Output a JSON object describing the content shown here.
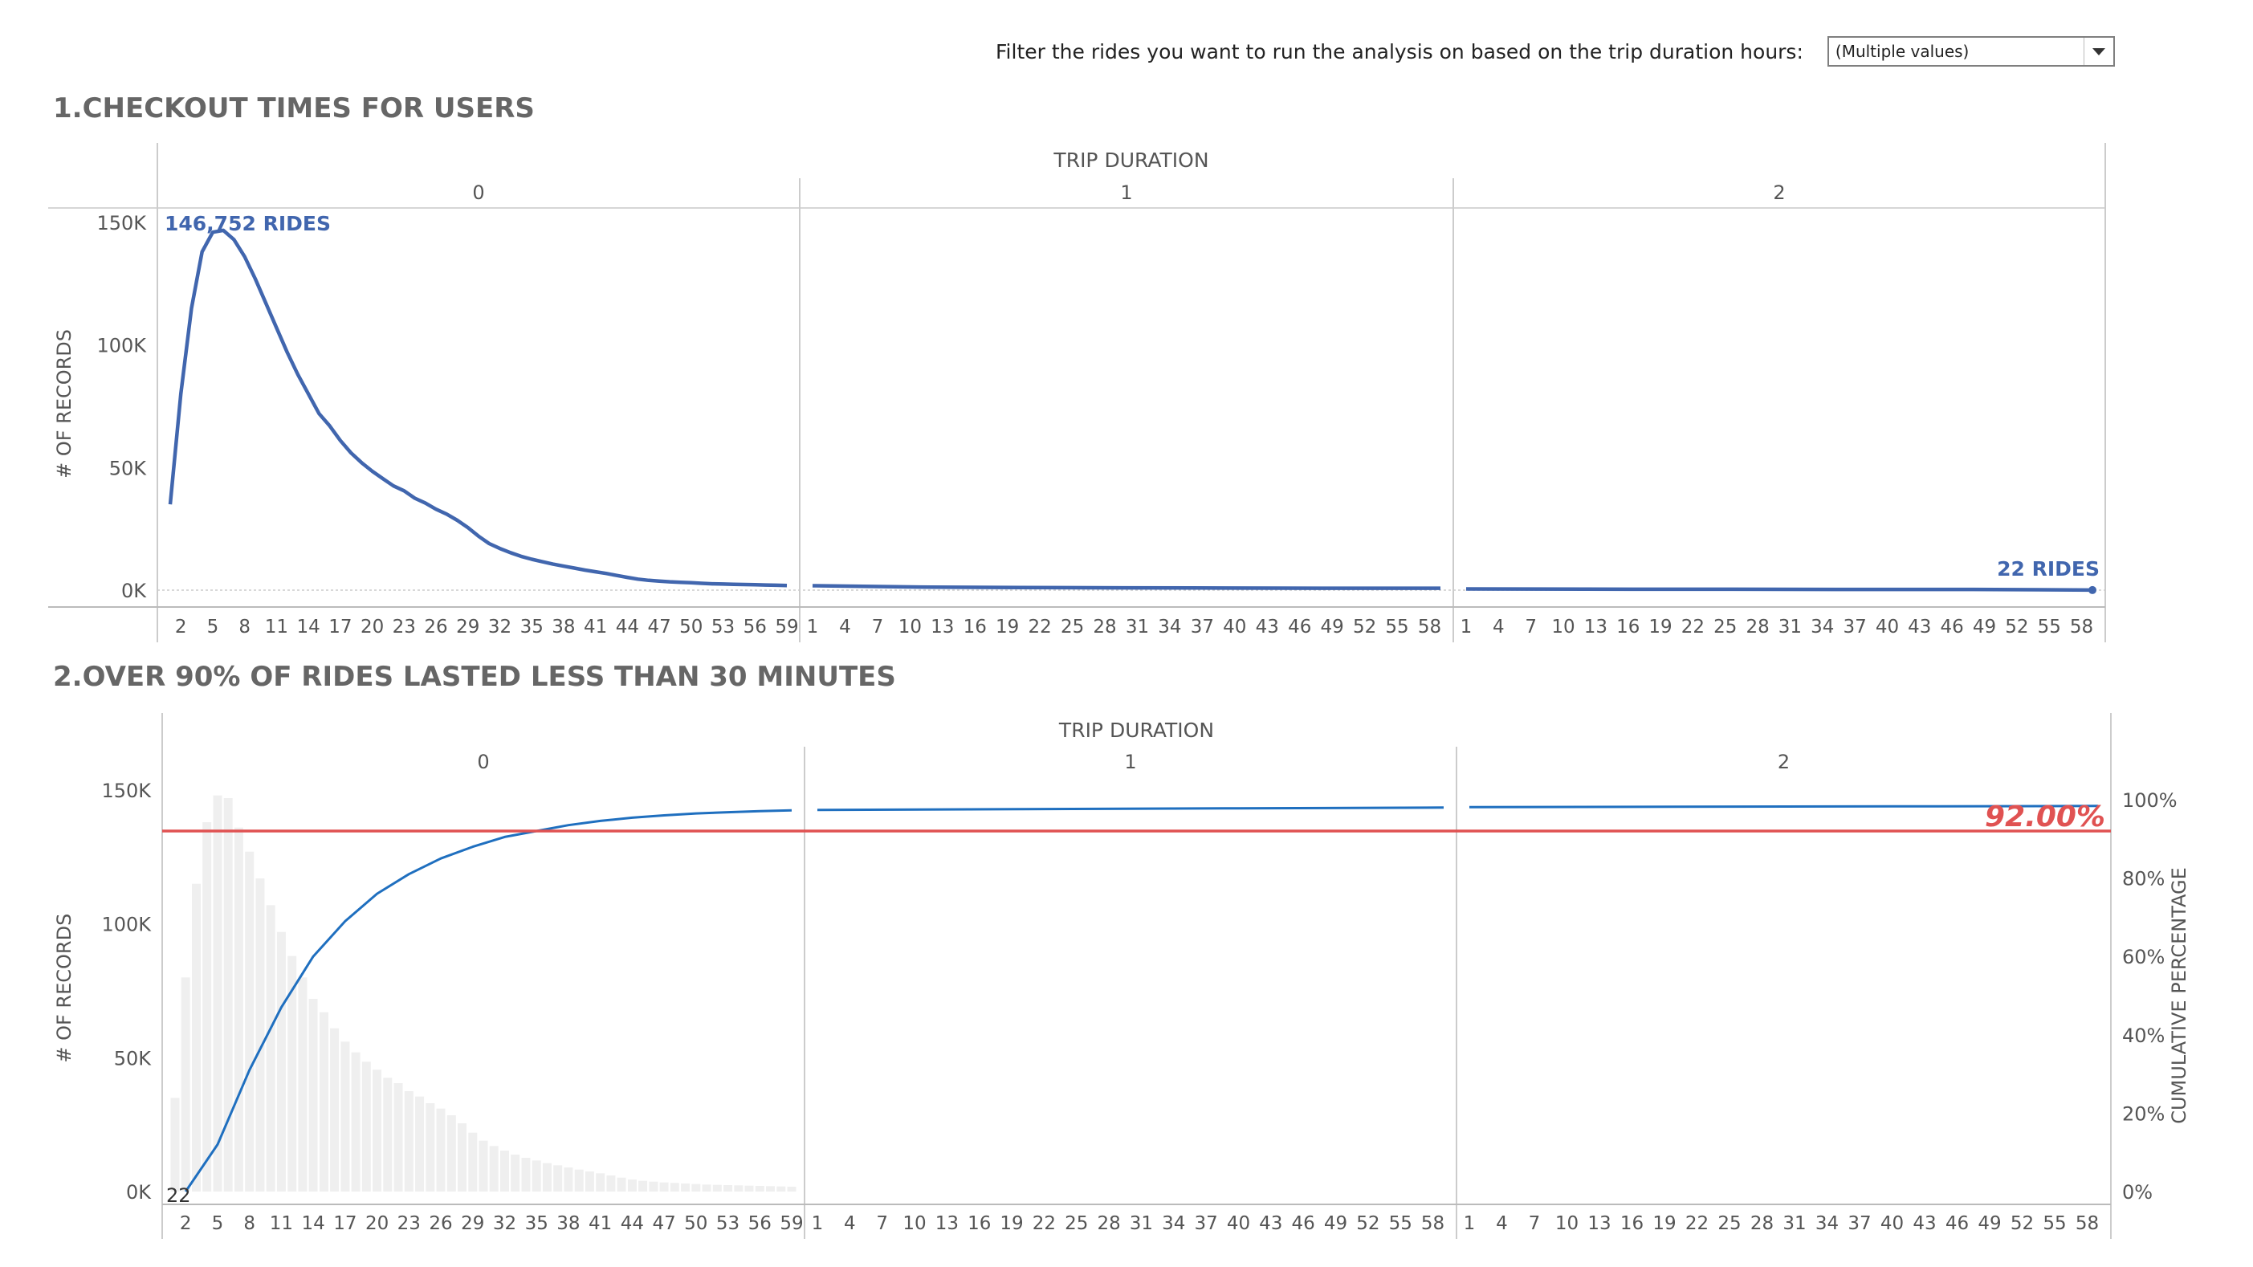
{
  "filter": {
    "label": "Filter the rides you want to run the analysis on based on the trip duration hours:",
    "selected": "(Multiple values)"
  },
  "sections": {
    "top_title": "1.CHECKOUT TIMES FOR USERS",
    "bottom_title": "2.OVER 90% OF RIDES LASTED LESS THAN 30 MINUTES"
  },
  "colors": {
    "line": "#4166ae",
    "cumulative": "#1f6fbf",
    "threshold": "#e05252",
    "bars": "#efefef",
    "axis_text": "#555555",
    "grid": "#d9d9d9"
  },
  "chart_data": [
    {
      "type": "line",
      "title": "1.CHECKOUT TIMES FOR USERS",
      "column_header": "TRIP DURATION",
      "panels": [
        "0",
        "1",
        "2"
      ],
      "ylabel": "# OF RECORDS",
      "ylim": [
        0,
        160000
      ],
      "yticks": [
        "150K",
        "100K",
        "50K",
        "0K"
      ],
      "ytick_values": [
        150000,
        100000,
        50000,
        0
      ],
      "xlabel": "",
      "x_ticks_hour0": [
        "2",
        "5",
        "8",
        "11",
        "14",
        "17",
        "20",
        "23",
        "26",
        "29",
        "32",
        "35",
        "38",
        "41",
        "44",
        "47",
        "50",
        "53",
        "56",
        "59"
      ],
      "x_ticks_hours12": [
        "1",
        "4",
        "7",
        "10",
        "13",
        "16",
        "19",
        "22",
        "25",
        "28",
        "31",
        "34",
        "37",
        "40",
        "43",
        "46",
        "49",
        "52",
        "55",
        "58"
      ],
      "series": [
        {
          "hour0_minutes": [
            1,
            2,
            3,
            4,
            5,
            6,
            7,
            8,
            9,
            10,
            11,
            12,
            13,
            14,
            15,
            16,
            17,
            18,
            19,
            20,
            21,
            22,
            23,
            24,
            25,
            26,
            27,
            28,
            29,
            30,
            31,
            32,
            33,
            34,
            35,
            36,
            37,
            38,
            39,
            40,
            41,
            42,
            43,
            44,
            45,
            46,
            47,
            48,
            49,
            50,
            51,
            52,
            53,
            54,
            55,
            56,
            57,
            58,
            59
          ],
          "hour0_values": [
            35000,
            80000,
            115000,
            138000,
            146000,
            146752,
            143000,
            136000,
            127000,
            117000,
            107000,
            97000,
            88000,
            80000,
            72000,
            67000,
            61000,
            56000,
            52000,
            48500,
            45500,
            42500,
            40500,
            37500,
            35500,
            33000,
            31000,
            28500,
            25500,
            22000,
            19000,
            17000,
            15300,
            13800,
            12600,
            11600,
            10600,
            9800,
            9000,
            8200,
            7500,
            6800,
            6000,
            5200,
            4500,
            4000,
            3700,
            3400,
            3200,
            3000,
            2800,
            2600,
            2500,
            2400,
            2300,
            2200,
            2100,
            2000,
            1900
          ],
          "hour1_values": [
            1800,
            1200,
            1000,
            900,
            800,
            800
          ],
          "hour2_values": [
            500,
            400,
            350,
            300,
            280,
            22
          ]
        }
      ],
      "annotations": [
        {
          "text": "146,752 RIDES",
          "hour": 0,
          "minute": 6,
          "value": 146752
        },
        {
          "text": "22 RIDES",
          "hour": 2,
          "minute": 59,
          "value": 22
        }
      ]
    },
    {
      "type": "bar+line",
      "title": "2.OVER 90% OF RIDES LASTED LESS THAN 30 MINUTES",
      "column_header": "TRIP DURATION",
      "panels": [
        "0",
        "1",
        "2"
      ],
      "ylabel": "# OF RECORDS",
      "ylabel_right": "CUMULATIVE PERCENTAGE",
      "ylim": [
        0,
        160000
      ],
      "yticks": [
        "150K",
        "100K",
        "50K",
        "0K"
      ],
      "ytick_values": [
        150000,
        100000,
        50000,
        0
      ],
      "yticks_right": [
        "100%",
        "80%",
        "60%",
        "40%",
        "20%",
        "0%"
      ],
      "ytick_right_values": [
        1.0,
        0.8,
        0.6,
        0.4,
        0.2,
        0.0
      ],
      "x_ticks_hour0": [
        "2",
        "5",
        "8",
        "11",
        "14",
        "17",
        "20",
        "23",
        "26",
        "29",
        "32",
        "35",
        "38",
        "41",
        "44",
        "47",
        "50",
        "53",
        "56",
        "59"
      ],
      "x_ticks_hours12": [
        "1",
        "4",
        "7",
        "10",
        "13",
        "16",
        "19",
        "22",
        "25",
        "28",
        "31",
        "34",
        "37",
        "40",
        "43",
        "46",
        "49",
        "52",
        "55",
        "58"
      ],
      "bars_hour0": [
        35000,
        80000,
        115000,
        138000,
        148000,
        147000,
        136000,
        127000,
        117000,
        107000,
        97000,
        88000,
        80000,
        72000,
        67000,
        61000,
        56000,
        52000,
        48500,
        45500,
        42500,
        40500,
        37500,
        35500,
        33000,
        31000,
        28500,
        25500,
        22000,
        19000,
        17000,
        15300,
        13800,
        12600,
        11600,
        10600,
        9800,
        9000,
        8200,
        7500,
        6800,
        6000,
        5200,
        4500,
        4000,
        3700,
        3400,
        3200,
        3000,
        2800,
        2600,
        2500,
        2400,
        2300,
        2200,
        2100,
        2000,
        1900,
        1800
      ],
      "cumulative_hour0_minutes": [
        2,
        5,
        8,
        11,
        14,
        17,
        20,
        23,
        26,
        29,
        32,
        35,
        38,
        41,
        44,
        47,
        50,
        53,
        56,
        59
      ],
      "cumulative_hour0": [
        0.0,
        0.12,
        0.31,
        0.47,
        0.6,
        0.69,
        0.76,
        0.81,
        0.85,
        0.88,
        0.905,
        0.92,
        0.935,
        0.946,
        0.954,
        0.96,
        0.965,
        0.968,
        0.971,
        0.973
      ],
      "cumulative_hour1": [
        0.974,
        0.976,
        0.978,
        0.98
      ],
      "cumulative_hour2": [
        0.981,
        0.982,
        0.983,
        0.984
      ],
      "threshold": 0.92,
      "threshold_label": "92.00%",
      "annotation": {
        "text": "22",
        "hour": 0,
        "minute": 2
      }
    }
  ]
}
